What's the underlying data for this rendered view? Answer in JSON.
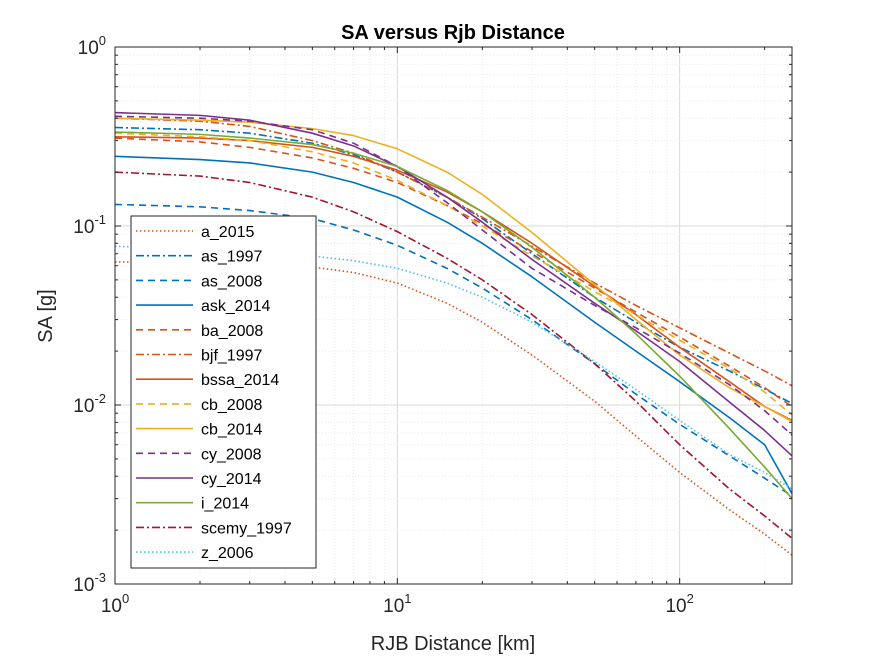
{
  "chart_data": {
    "type": "line",
    "title": "SA versus Rjb Distance",
    "xlabel": "RJB Distance [km]",
    "ylabel": "SA [g]",
    "xscale": "log",
    "yscale": "log",
    "xlim": [
      1,
      250
    ],
    "ylim": [
      0.001,
      1
    ],
    "grid": "on",
    "legend_placement": "bottom-left inside",
    "x_ticks": [
      {
        "value": 1,
        "base": "10",
        "exp": "0"
      },
      {
        "value": 10,
        "base": "10",
        "exp": "1"
      },
      {
        "value": 100,
        "base": "10",
        "exp": "2"
      }
    ],
    "y_ticks": [
      {
        "value": 1,
        "base": "10",
        "exp": "0"
      },
      {
        "value": 0.1,
        "base": "10",
        "exp": "-1"
      },
      {
        "value": 0.01,
        "base": "10",
        "exp": "-2"
      },
      {
        "value": 0.001,
        "base": "10",
        "exp": "-3"
      }
    ],
    "x": [
      1,
      2,
      3,
      5,
      7,
      10,
      15,
      20,
      30,
      50,
      70,
      100,
      150,
      200,
      250
    ],
    "series": [
      {
        "name": "a_2015",
        "color": "#D95319",
        "dash": "1.5,2.5",
        "values": [
          0.063,
          0.0625,
          0.062,
          0.059,
          0.055,
          0.048,
          0.037,
          0.029,
          0.019,
          0.0105,
          0.0067,
          0.0042,
          0.0026,
          0.0019,
          0.00145
        ]
      },
      {
        "name": "as_1997",
        "color": "#0072BD",
        "dash": "8,3,2,3",
        "values": [
          0.355,
          0.345,
          0.33,
          0.29,
          0.25,
          0.2,
          0.145,
          0.11,
          0.07,
          0.04,
          0.029,
          0.021,
          0.0155,
          0.0123,
          0.0102
        ]
      },
      {
        "name": "as_2008",
        "color": "#0072BD",
        "dash": "7,5",
        "values": [
          0.132,
          0.128,
          0.122,
          0.11,
          0.095,
          0.078,
          0.058,
          0.045,
          0.03,
          0.017,
          0.0115,
          0.0078,
          0.0052,
          0.0039,
          0.0031
        ]
      },
      {
        "name": "ask_2014",
        "color": "#0072BD",
        "dash": "",
        "values": [
          0.245,
          0.235,
          0.225,
          0.2,
          0.175,
          0.145,
          0.105,
          0.08,
          0.052,
          0.029,
          0.02,
          0.0135,
          0.0085,
          0.006,
          0.0032
        ]
      },
      {
        "name": "ba_2008",
        "color": "#D95319",
        "dash": "7,5",
        "values": [
          0.31,
          0.295,
          0.275,
          0.24,
          0.21,
          0.175,
          0.13,
          0.103,
          0.072,
          0.045,
          0.033,
          0.024,
          0.0165,
          0.0125,
          0.0098
        ]
      },
      {
        "name": "bjf_1997",
        "color": "#D95319",
        "dash": "8,3,2,3",
        "values": [
          0.4,
          0.385,
          0.36,
          0.3,
          0.255,
          0.2,
          0.145,
          0.112,
          0.077,
          0.048,
          0.036,
          0.027,
          0.0195,
          0.0155,
          0.0128
        ]
      },
      {
        "name": "bssa_2014",
        "color": "#D95319",
        "dash": "",
        "values": [
          0.315,
          0.31,
          0.3,
          0.275,
          0.245,
          0.205,
          0.155,
          0.12,
          0.08,
          0.046,
          0.032,
          0.021,
          0.0135,
          0.0098,
          0.0082
        ]
      },
      {
        "name": "cb_2008",
        "color": "#EDB120",
        "dash": "7,5",
        "values": [
          0.33,
          0.315,
          0.3,
          0.26,
          0.225,
          0.18,
          0.13,
          0.1,
          0.068,
          0.043,
          0.032,
          0.023,
          0.016,
          0.0118,
          0.0088
        ]
      },
      {
        "name": "cb_2014",
        "color": "#EDB120",
        "dash": "",
        "values": [
          0.4,
          0.39,
          0.38,
          0.35,
          0.32,
          0.27,
          0.2,
          0.15,
          0.092,
          0.047,
          0.03,
          0.019,
          0.0125,
          0.0098,
          0.0081
        ]
      },
      {
        "name": "cy_2008",
        "color": "#7E2F8E",
        "dash": "7,5",
        "values": [
          0.41,
          0.4,
          0.385,
          0.345,
          0.29,
          0.215,
          0.135,
          0.095,
          0.058,
          0.036,
          0.027,
          0.0195,
          0.013,
          0.0093,
          0.0068
        ]
      },
      {
        "name": "cy_2014",
        "color": "#7E2F8E",
        "dash": "",
        "values": [
          0.43,
          0.415,
          0.39,
          0.33,
          0.28,
          0.215,
          0.145,
          0.105,
          0.065,
          0.037,
          0.026,
          0.0175,
          0.0104,
          0.0072,
          0.0052
        ]
      },
      {
        "name": "i_2014",
        "color": "#77AC30",
        "dash": "",
        "values": [
          0.335,
          0.325,
          0.31,
          0.285,
          0.255,
          0.215,
          0.158,
          0.12,
          0.076,
          0.04,
          0.025,
          0.0145,
          0.0074,
          0.0045,
          0.003
        ]
      },
      {
        "name": "scemy_1997",
        "color": "#A2142F",
        "dash": "8,3,2,3",
        "values": [
          0.2,
          0.19,
          0.175,
          0.145,
          0.12,
          0.093,
          0.066,
          0.05,
          0.032,
          0.017,
          0.0105,
          0.006,
          0.0034,
          0.0024,
          0.0018
        ]
      },
      {
        "name": "z_2006",
        "color": "#4DBEEE",
        "dash": "1.5,2.5",
        "values": [
          0.077,
          0.074,
          0.072,
          0.068,
          0.064,
          0.058,
          0.048,
          0.04,
          0.029,
          0.0175,
          0.0122,
          0.0082,
          0.0053,
          0.0042,
          0.0034
        ]
      }
    ]
  }
}
